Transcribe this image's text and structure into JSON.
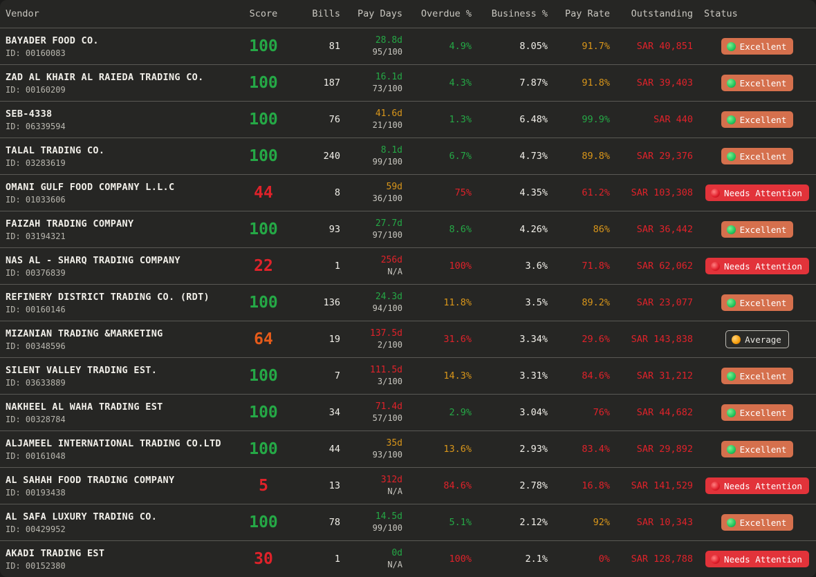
{
  "colors": {
    "green": "#25a846",
    "red": "#e0222a",
    "orange": "#e65b1a",
    "amber": "#d9961a",
    "white": "#f1efe9",
    "badge_excellent": "#d5704d",
    "badge_attention": "#e2333a",
    "dot_green": "#22c55e",
    "dot_red": "#e11d2a",
    "dot_orange": "#f59e0b"
  },
  "header": {
    "vendor": "Vendor",
    "score": "Score",
    "bills": "Bills",
    "pay_days": "Pay Days",
    "overdue": "Overdue %",
    "business": "Business %",
    "pay_rate": "Pay Rate",
    "outstanding": "Outstanding",
    "status": "Status"
  },
  "rows": [
    {
      "name": "BAYADER FOOD CO.",
      "id": "ID: 00160083",
      "score": "100",
      "score_color": "green",
      "bills": "81",
      "pay_days": "28.8d",
      "pay_days_color": "green",
      "pay_score": "95/100",
      "overdue": "4.9%",
      "overdue_color": "green",
      "business": "8.05%",
      "pay_rate": "91.7%",
      "pay_rate_color": "amber",
      "outstanding": "SAR 40,851",
      "status": "Excellent",
      "status_type": "excellent"
    },
    {
      "name": "ZAD AL KHAIR AL RAIEDA TRADING CO.",
      "id": "ID: 00160209",
      "score": "100",
      "score_color": "green",
      "bills": "187",
      "pay_days": "16.1d",
      "pay_days_color": "green",
      "pay_score": "73/100",
      "overdue": "4.3%",
      "overdue_color": "green",
      "business": "7.87%",
      "pay_rate": "91.8%",
      "pay_rate_color": "amber",
      "outstanding": "SAR 39,403",
      "status": "Excellent",
      "status_type": "excellent"
    },
    {
      "name": "SEB-4338",
      "id": "ID: 06339594",
      "score": "100",
      "score_color": "green",
      "bills": "76",
      "pay_days": "41.6d",
      "pay_days_color": "amber",
      "pay_score": "21/100",
      "overdue": "1.3%",
      "overdue_color": "green",
      "business": "6.48%",
      "pay_rate": "99.9%",
      "pay_rate_color": "green",
      "outstanding": "SAR 440",
      "status": "Excellent",
      "status_type": "excellent"
    },
    {
      "name": "TALAL TRADING CO.",
      "id": "ID: 03283619",
      "score": "100",
      "score_color": "green",
      "bills": "240",
      "pay_days": "8.1d",
      "pay_days_color": "green",
      "pay_score": "99/100",
      "overdue": "6.7%",
      "overdue_color": "green",
      "business": "4.73%",
      "pay_rate": "89.8%",
      "pay_rate_color": "amber",
      "outstanding": "SAR 29,376",
      "status": "Excellent",
      "status_type": "excellent"
    },
    {
      "name": "OMANI GULF FOOD COMPANY L.L.C",
      "id": "ID: 01033606",
      "score": "44",
      "score_color": "red",
      "bills": "8",
      "pay_days": "59d",
      "pay_days_color": "amber",
      "pay_score": "36/100",
      "overdue": "75%",
      "overdue_color": "red",
      "business": "4.35%",
      "pay_rate": "61.2%",
      "pay_rate_color": "red",
      "outstanding": "SAR 103,308",
      "status": "Needs Attention",
      "status_type": "attention"
    },
    {
      "name": "FAIZAH TRADING COMPANY",
      "id": "ID: 03194321",
      "score": "100",
      "score_color": "green",
      "bills": "93",
      "pay_days": "27.7d",
      "pay_days_color": "green",
      "pay_score": "97/100",
      "overdue": "8.6%",
      "overdue_color": "green",
      "business": "4.26%",
      "pay_rate": "86%",
      "pay_rate_color": "amber",
      "outstanding": "SAR 36,442",
      "status": "Excellent",
      "status_type": "excellent"
    },
    {
      "name": "NAS AL - SHARQ TRADING COMPANY",
      "id": "ID: 00376839",
      "score": "22",
      "score_color": "red",
      "bills": "1",
      "pay_days": "256d",
      "pay_days_color": "red",
      "pay_score": "N/A",
      "overdue": "100%",
      "overdue_color": "red",
      "business": "3.6%",
      "pay_rate": "71.8%",
      "pay_rate_color": "red",
      "outstanding": "SAR 62,062",
      "status": "Needs Attention",
      "status_type": "attention"
    },
    {
      "name": "REFINERY DISTRICT TRADING CO. (RDT)",
      "id": "ID: 00160146",
      "score": "100",
      "score_color": "green",
      "bills": "136",
      "pay_days": "24.3d",
      "pay_days_color": "green",
      "pay_score": "94/100",
      "overdue": "11.8%",
      "overdue_color": "amber",
      "business": "3.5%",
      "pay_rate": "89.2%",
      "pay_rate_color": "amber",
      "outstanding": "SAR 23,077",
      "status": "Excellent",
      "status_type": "excellent"
    },
    {
      "name": "MIZANIAN TRADING &MARKETING",
      "id": "ID: 00348596",
      "score": "64",
      "score_color": "orange",
      "bills": "19",
      "pay_days": "137.5d",
      "pay_days_color": "red",
      "pay_score": "2/100",
      "overdue": "31.6%",
      "overdue_color": "red",
      "business": "3.34%",
      "pay_rate": "29.6%",
      "pay_rate_color": "red",
      "outstanding": "SAR 143,838",
      "status": "Average",
      "status_type": "average"
    },
    {
      "name": "SILENT VALLEY TRADING EST.",
      "id": "ID: 03633889",
      "score": "100",
      "score_color": "green",
      "bills": "7",
      "pay_days": "111.5d",
      "pay_days_color": "red",
      "pay_score": "3/100",
      "overdue": "14.3%",
      "overdue_color": "amber",
      "business": "3.31%",
      "pay_rate": "84.6%",
      "pay_rate_color": "red",
      "outstanding": "SAR 31,212",
      "status": "Excellent",
      "status_type": "excellent"
    },
    {
      "name": "NAKHEEL AL WAHA TRADING EST",
      "id": "ID: 00328784",
      "score": "100",
      "score_color": "green",
      "bills": "34",
      "pay_days": "71.4d",
      "pay_days_color": "red",
      "pay_score": "57/100",
      "overdue": "2.9%",
      "overdue_color": "green",
      "business": "3.04%",
      "pay_rate": "76%",
      "pay_rate_color": "red",
      "outstanding": "SAR 44,682",
      "status": "Excellent",
      "status_type": "excellent"
    },
    {
      "name": "ALJAMEEL INTERNATIONAL TRADING CO.LTD",
      "id": "ID: 00161048",
      "score": "100",
      "score_color": "green",
      "bills": "44",
      "pay_days": "35d",
      "pay_days_color": "amber",
      "pay_score": "93/100",
      "overdue": "13.6%",
      "overdue_color": "amber",
      "business": "2.93%",
      "pay_rate": "83.4%",
      "pay_rate_color": "red",
      "outstanding": "SAR 29,892",
      "status": "Excellent",
      "status_type": "excellent"
    },
    {
      "name": "AL SAHAH FOOD TRADING COMPANY",
      "id": "ID: 00193438",
      "score": "5",
      "score_color": "red",
      "bills": "13",
      "pay_days": "312d",
      "pay_days_color": "red",
      "pay_score": "N/A",
      "overdue": "84.6%",
      "overdue_color": "red",
      "business": "2.78%",
      "pay_rate": "16.8%",
      "pay_rate_color": "red",
      "outstanding": "SAR 141,529",
      "status": "Needs Attention",
      "status_type": "attention"
    },
    {
      "name": "AL SAFA LUXURY TRADING CO.",
      "id": "ID: 00429952",
      "score": "100",
      "score_color": "green",
      "bills": "78",
      "pay_days": "14.5d",
      "pay_days_color": "green",
      "pay_score": "99/100",
      "overdue": "5.1%",
      "overdue_color": "green",
      "business": "2.12%",
      "pay_rate": "92%",
      "pay_rate_color": "amber",
      "outstanding": "SAR 10,343",
      "status": "Excellent",
      "status_type": "excellent"
    },
    {
      "name": "AKADI TRADING EST",
      "id": "ID: 00152380",
      "score": "30",
      "score_color": "red",
      "bills": "1",
      "pay_days": "0d",
      "pay_days_color": "green",
      "pay_score": "N/A",
      "overdue": "100%",
      "overdue_color": "red",
      "business": "2.1%",
      "pay_rate": "0%",
      "pay_rate_color": "red",
      "outstanding": "SAR 128,788",
      "status": "Needs Attention",
      "status_type": "attention"
    }
  ]
}
